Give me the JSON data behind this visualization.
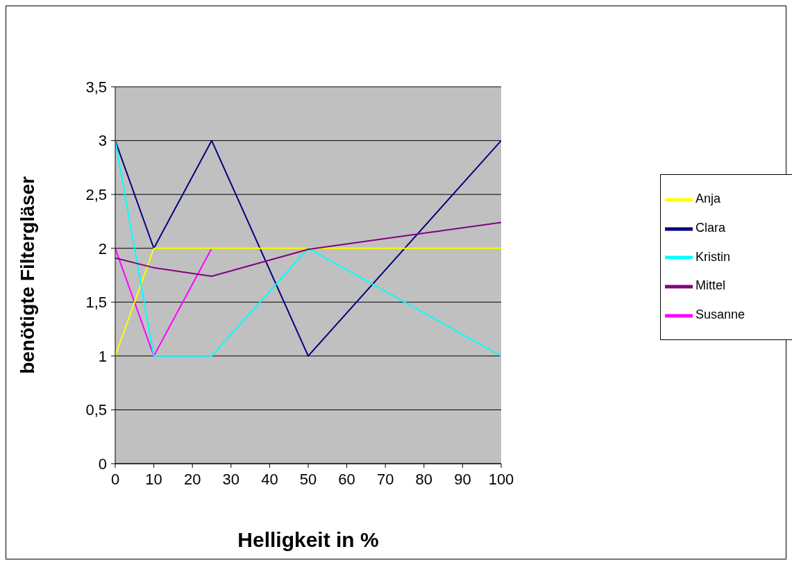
{
  "chart_data": {
    "type": "line",
    "xlabel": "Helligkeit in %",
    "ylabel": "benötigte Filtergläser",
    "x": [
      0,
      10,
      25,
      50,
      100
    ],
    "series": [
      {
        "name": "Clara",
        "color": "#000080",
        "values": [
          3,
          2,
          3,
          1,
          3
        ]
      },
      {
        "name": "Susanne",
        "color": "#ff00ff",
        "values": [
          2,
          1,
          2,
          null,
          null
        ]
      },
      {
        "name": "Anja",
        "color": "#ffff00",
        "values": [
          1,
          2,
          2,
          2,
          2
        ]
      },
      {
        "name": "Kristin",
        "color": "#00ffff",
        "values": [
          3,
          1,
          1,
          2,
          1
        ]
      },
      {
        "name": "Mittel",
        "color": "#800080",
        "values": [
          1.91,
          1.82,
          1.74,
          1.99,
          2.24
        ]
      }
    ],
    "xlim": [
      0,
      100
    ],
    "xticks": [
      0,
      10,
      20,
      30,
      40,
      50,
      60,
      70,
      80,
      90,
      100
    ],
    "ylim": [
      0,
      3.5
    ],
    "yticks": [
      0,
      {
        "value": 0.5,
        "label": "0,5"
      },
      1,
      {
        "value": 1.5,
        "label": "1,5"
      },
      2,
      {
        "value": 2.5,
        "label": "2,5"
      },
      3,
      {
        "value": 3.5,
        "label": "3,5"
      }
    ],
    "grid": "y",
    "legend": "right",
    "marker": "none",
    "line_style": "solid"
  }
}
